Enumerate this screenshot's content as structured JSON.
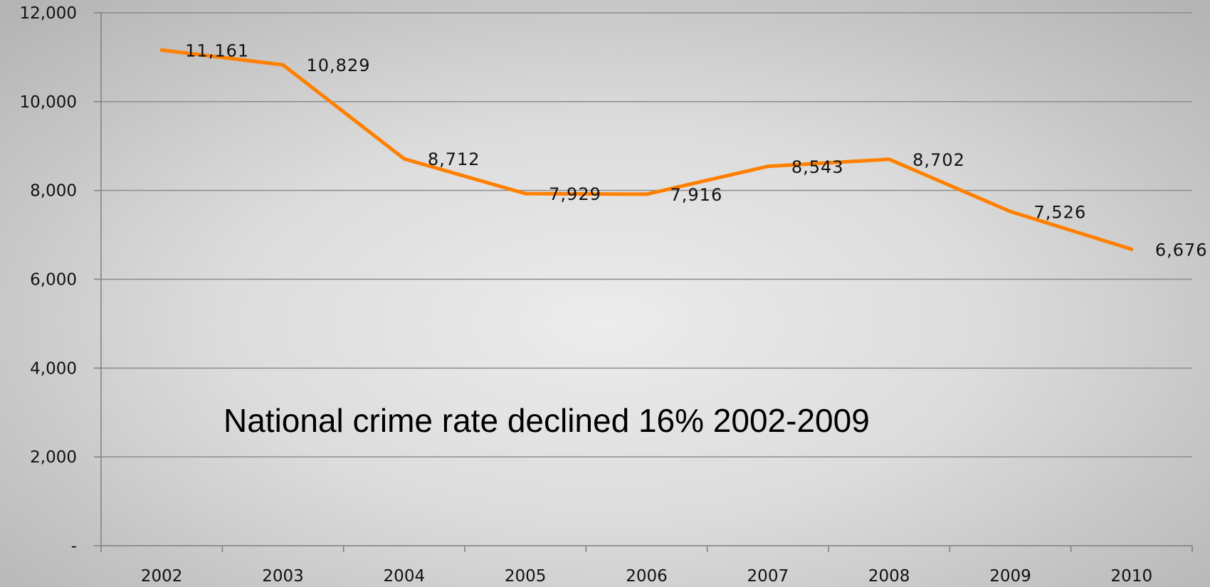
{
  "chart_data": {
    "type": "line",
    "title": "",
    "xlabel": "",
    "ylabel": "",
    "categories": [
      "2002",
      "2003",
      "2004",
      "2005",
      "2006",
      "2007",
      "2008",
      "2009",
      "2010"
    ],
    "series": [
      {
        "values": [
          11161,
          10829,
          8712,
          7929,
          7916,
          8543,
          8702,
          7526,
          6676
        ],
        "data_labels": [
          "11,161",
          "10,829",
          "8,712",
          "7,929",
          "7,916",
          "8,543",
          "8,702",
          "7,526",
          "6,676"
        ],
        "color": "#ff8000"
      }
    ],
    "ylim": [
      0,
      12000
    ],
    "yticks": [
      0,
      2000,
      4000,
      6000,
      8000,
      10000,
      12000
    ],
    "ytick_labels": [
      "-",
      "2,000",
      "4,000",
      "6,000",
      "8,000",
      "10,000",
      "12,000"
    ],
    "grid": true,
    "legend": "none",
    "annotation": "National crime rate declined 16% 2002-2009"
  }
}
